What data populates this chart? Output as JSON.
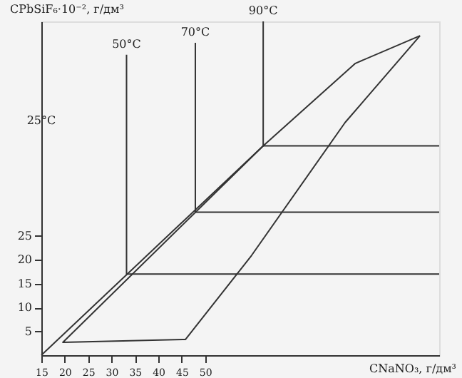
{
  "chart_data": {
    "type": "line",
    "xlabel": "CNaNO₃, г/дм³",
    "ylabel": "CPbSiF₆·10⁻², г/дм³",
    "xlim": [
      15,
      100
    ],
    "ylim": [
      0,
      70
    ],
    "xticks": [
      15,
      20,
      25,
      30,
      35,
      40,
      45,
      50
    ],
    "yticks": [
      5,
      10,
      15,
      20,
      25
    ],
    "grid": false,
    "legend": false,
    "marker": "none",
    "line_style": "solid",
    "annotations": [
      "25°C"
    ],
    "series": [
      {
        "color": "#333333",
        "x": [
          15,
          62.4,
          82.1,
          95.9
        ],
        "values": [
          0,
          43.9,
          61.2,
          67
        ]
      },
      {
        "color": "#333333",
        "x": [
          62.4,
          19.6,
          45.8,
          59.9,
          79.9,
          95.9
        ],
        "values": [
          43.9,
          2.7,
          3.3,
          20.9,
          48.8,
          67
        ]
      },
      {
        "name": "50°C",
        "color": "#333333",
        "x": [
          33.2,
          33.2,
          100
        ],
        "values": [
          63,
          17,
          17
        ]
      },
      {
        "name": "70°C",
        "color": "#333333",
        "x": [
          47.9,
          47.9,
          100
        ],
        "values": [
          65.5,
          30,
          30
        ]
      },
      {
        "name": "90°C",
        "color": "#333333",
        "x": [
          62.4,
          62.4,
          100
        ],
        "values": [
          70,
          43.9,
          43.9
        ]
      }
    ]
  }
}
